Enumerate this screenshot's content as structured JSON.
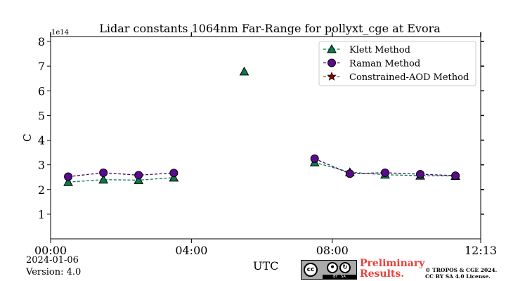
{
  "chart_data": {
    "type": "line",
    "title": "Lidar constants 1064nm Far-Range for pollyxt_cge at Evora",
    "ylabel": "C",
    "y_scale_label": "1e14",
    "xlabel": "UTC",
    "xlim": [
      "00:00",
      "12:13"
    ],
    "ylim": [
      0,
      8.2
    ],
    "x_ticks": [
      "00:00",
      "04:00",
      "08:00",
      "12:13"
    ],
    "y_ticks": [
      "1",
      "2",
      "3",
      "4",
      "5",
      "6",
      "7",
      "8"
    ],
    "legend_position": "top-right",
    "series": [
      {
        "name": "Klett Method",
        "marker": "triangle",
        "line_color": "#0a7a4a",
        "fill_color": "#0a7a4a",
        "points": [
          {
            "x": "00:30",
            "y": 2.3
          },
          {
            "x": "01:30",
            "y": 2.4
          },
          {
            "x": "02:30",
            "y": 2.38
          },
          {
            "x": "03:30",
            "y": 2.48
          },
          {
            "x": "05:30",
            "y": 6.78
          },
          {
            "x": "07:30",
            "y": 3.1
          },
          {
            "x": "08:30",
            "y": 2.7
          },
          {
            "x": "09:30",
            "y": 2.6
          },
          {
            "x": "10:30",
            "y": 2.56
          },
          {
            "x": "11:30",
            "y": 2.55
          }
        ],
        "connect": [
          [
            0,
            1,
            2,
            3
          ],
          [
            5,
            6,
            7,
            8,
            9
          ]
        ]
      },
      {
        "name": "Raman Method",
        "marker": "circle",
        "line_color": "#3a0a66",
        "fill_color": "#5a0a8f",
        "points": [
          {
            "x": "00:30",
            "y": 2.52
          },
          {
            "x": "01:30",
            "y": 2.68
          },
          {
            "x": "02:30",
            "y": 2.58
          },
          {
            "x": "03:30",
            "y": 2.67
          },
          {
            "x": "07:30",
            "y": 3.25
          },
          {
            "x": "08:30",
            "y": 2.64
          },
          {
            "x": "09:30",
            "y": 2.68
          },
          {
            "x": "10:30",
            "y": 2.62
          },
          {
            "x": "11:30",
            "y": 2.56
          }
        ],
        "connect": [
          [
            0,
            1,
            2,
            3
          ],
          [
            4,
            5,
            6,
            7,
            8
          ]
        ]
      },
      {
        "name": "Constrained-AOD Method",
        "marker": "star",
        "line_color": "#a0521a",
        "fill_color": "#8b0000",
        "points": [],
        "connect": []
      }
    ]
  },
  "footer": {
    "date": "2024-01-06",
    "version": "Version: 4.0",
    "preliminary_line1": "Preliminary",
    "preliminary_line2": "Results.",
    "copyright_line1": "© TROPOS & CGE 2024.",
    "copyright_line2": "CC BY SA 4.0 License.",
    "cc_text": "cc",
    "by_text": "BY",
    "sa_text": "SA"
  }
}
